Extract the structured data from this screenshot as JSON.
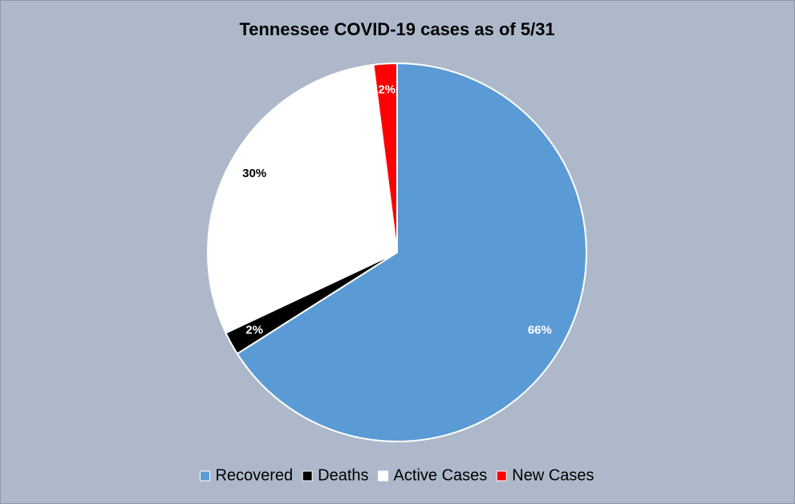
{
  "chart_data": {
    "type": "pie",
    "title": "Tennessee COVID-19 cases as of 5/31",
    "categories": [
      "Recovered",
      "Deaths",
      "Active Cases",
      "New Cases"
    ],
    "values": [
      66,
      2,
      30,
      2
    ],
    "value_labels": [
      "66%",
      "2%",
      "30%",
      "2%"
    ],
    "colors": [
      "#5b9bd5",
      "#000000",
      "#ffffff",
      "#ff0000"
    ],
    "legend": "bottom"
  }
}
